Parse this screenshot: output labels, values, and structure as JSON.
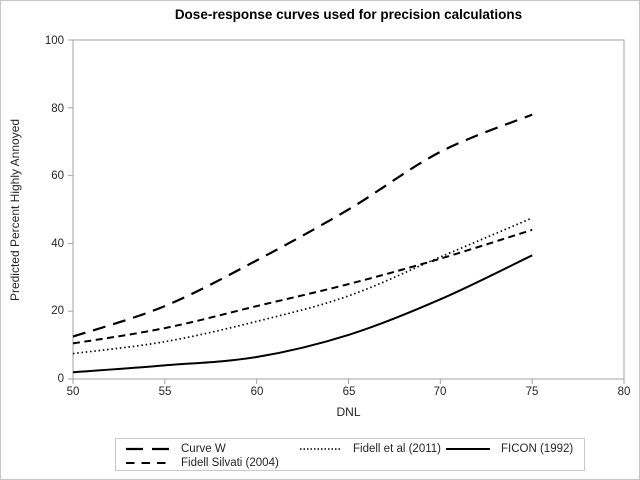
{
  "chart_data": {
    "type": "line",
    "title": "Dose-response curves used for precision calculations",
    "xlabel": "DNL",
    "ylabel": "Predicted Percent Highly Annoyed",
    "xlim": [
      50,
      80
    ],
    "ylim": [
      0,
      100
    ],
    "x_ticks": [
      50,
      55,
      60,
      65,
      70,
      75,
      80
    ],
    "y_ticks": [
      0,
      20,
      40,
      60,
      80,
      100
    ],
    "grid": false,
    "legend_position": "bottom-center",
    "line_color": "#000000",
    "frame_color": "#a3a3a3",
    "x": [
      50,
      55,
      60,
      65,
      70,
      75
    ],
    "series": [
      {
        "name": "Curve W",
        "line_style": "long-dash",
        "values": [
          12.5,
          21.5,
          35,
          50,
          67,
          78
        ]
      },
      {
        "name": "Fidell Silvati (2004)",
        "line_style": "dash",
        "values": [
          10.5,
          15,
          21.5,
          28,
          35.5,
          44
        ]
      },
      {
        "name": "Fidell et al (2011)",
        "line_style": "dotted",
        "values": [
          7.5,
          11,
          17,
          24.5,
          36,
          47.5
        ]
      },
      {
        "name": "FICON (1992)",
        "line_style": "solid",
        "values": [
          2,
          4,
          6.5,
          13,
          23.5,
          36.5
        ]
      }
    ]
  }
}
